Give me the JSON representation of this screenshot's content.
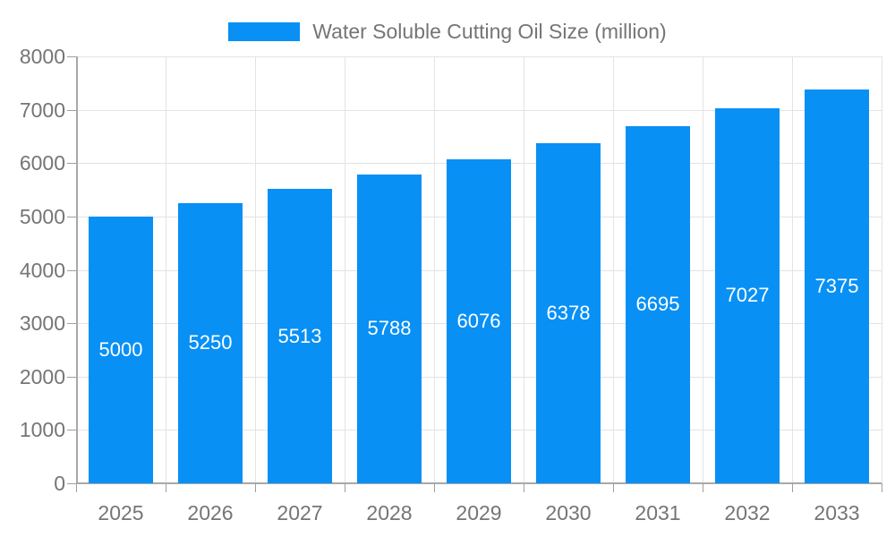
{
  "chart_data": {
    "type": "bar",
    "title": "Water Soluble Cutting Oil Size (million)",
    "series_name": "Water Soluble Cutting Oil Size (million)",
    "categories": [
      "2025",
      "2026",
      "2027",
      "2028",
      "2029",
      "2030",
      "2031",
      "2032",
      "2033"
    ],
    "values": [
      5000,
      5250,
      5513,
      5788,
      6076,
      6378,
      6695,
      7027,
      7375
    ],
    "xlabel": "",
    "ylabel": "",
    "ylim": [
      0,
      8000
    ],
    "y_ticks": [
      0,
      1000,
      2000,
      3000,
      4000,
      5000,
      6000,
      7000,
      8000
    ],
    "grid": true,
    "legend_position": "top-center",
    "bar_color": "#0890f5",
    "bar_label_color": "#ffffff",
    "axis_text_color": "#757575",
    "grid_color": "#e3e3e3",
    "axis_line_color": "#a8a8a8"
  }
}
